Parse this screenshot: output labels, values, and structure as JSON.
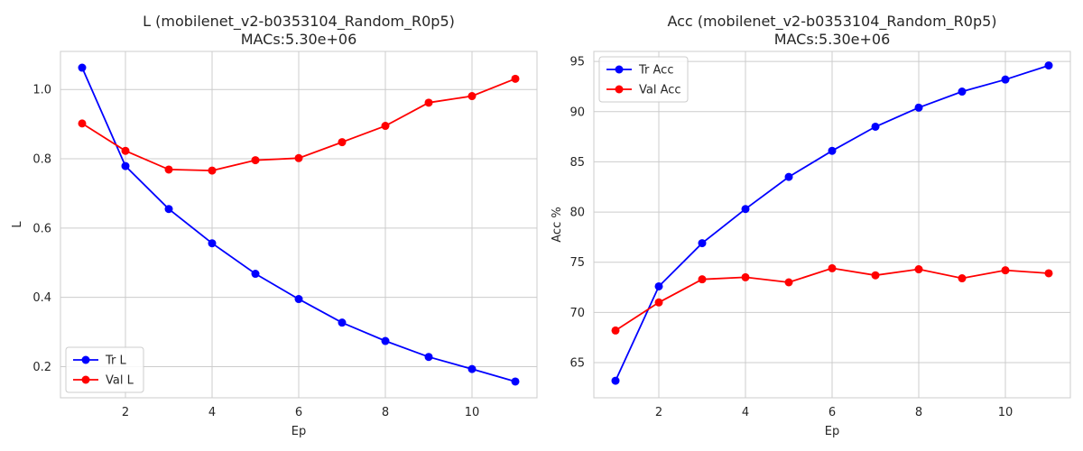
{
  "chart_data": [
    {
      "type": "line",
      "title_line1": "L (mobilenet_v2-b0353104_Random_R0p5)",
      "title_line2": "MACs:5.30e+06",
      "xlabel": "Ep",
      "ylabel": "L",
      "x": [
        1,
        2,
        3,
        4,
        5,
        6,
        7,
        8,
        9,
        10,
        11
      ],
      "xlim": [
        0.5,
        11.5
      ],
      "ylim": [
        0.11,
        1.11
      ],
      "xticks": [
        2,
        4,
        6,
        8,
        10
      ],
      "yticks": [
        0.2,
        0.4,
        0.6,
        0.8,
        1.0
      ],
      "ytick_labels": [
        "0.2",
        "0.4",
        "0.6",
        "0.8",
        "1.0"
      ],
      "grid": true,
      "legend_position": "lower-left",
      "series": [
        {
          "name": "Tr L",
          "color": "#0000ff",
          "values": [
            1.063,
            0.779,
            0.655,
            0.556,
            0.468,
            0.395,
            0.327,
            0.274,
            0.228,
            0.193,
            0.157
          ]
        },
        {
          "name": "Val L",
          "color": "#ff0000",
          "values": [
            0.902,
            0.823,
            0.769,
            0.766,
            0.796,
            0.802,
            0.848,
            0.895,
            0.962,
            0.981,
            1.031
          ]
        }
      ]
    },
    {
      "type": "line",
      "title_line1": "Acc (mobilenet_v2-b0353104_Random_R0p5)",
      "title_line2": "MACs:5.30e+06",
      "xlabel": "Ep",
      "ylabel": "Acc %",
      "x": [
        1,
        2,
        3,
        4,
        5,
        6,
        7,
        8,
        9,
        10,
        11
      ],
      "xlim": [
        0.5,
        11.5
      ],
      "ylim": [
        61.5,
        96.0
      ],
      "xticks": [
        2,
        4,
        6,
        8,
        10
      ],
      "yticks": [
        65,
        70,
        75,
        80,
        85,
        90,
        95
      ],
      "ytick_labels": [
        "65",
        "70",
        "75",
        "80",
        "85",
        "90",
        "95"
      ],
      "grid": true,
      "legend_position": "upper-left",
      "series": [
        {
          "name": "Tr Acc",
          "color": "#0000ff",
          "values": [
            63.2,
            72.6,
            76.9,
            80.3,
            83.5,
            86.1,
            88.5,
            90.4,
            92.0,
            93.2,
            94.6
          ]
        },
        {
          "name": "Val Acc",
          "color": "#ff0000",
          "values": [
            68.2,
            71.0,
            73.3,
            73.5,
            73.0,
            74.4,
            73.7,
            74.3,
            73.4,
            74.2,
            73.9
          ]
        }
      ]
    }
  ]
}
